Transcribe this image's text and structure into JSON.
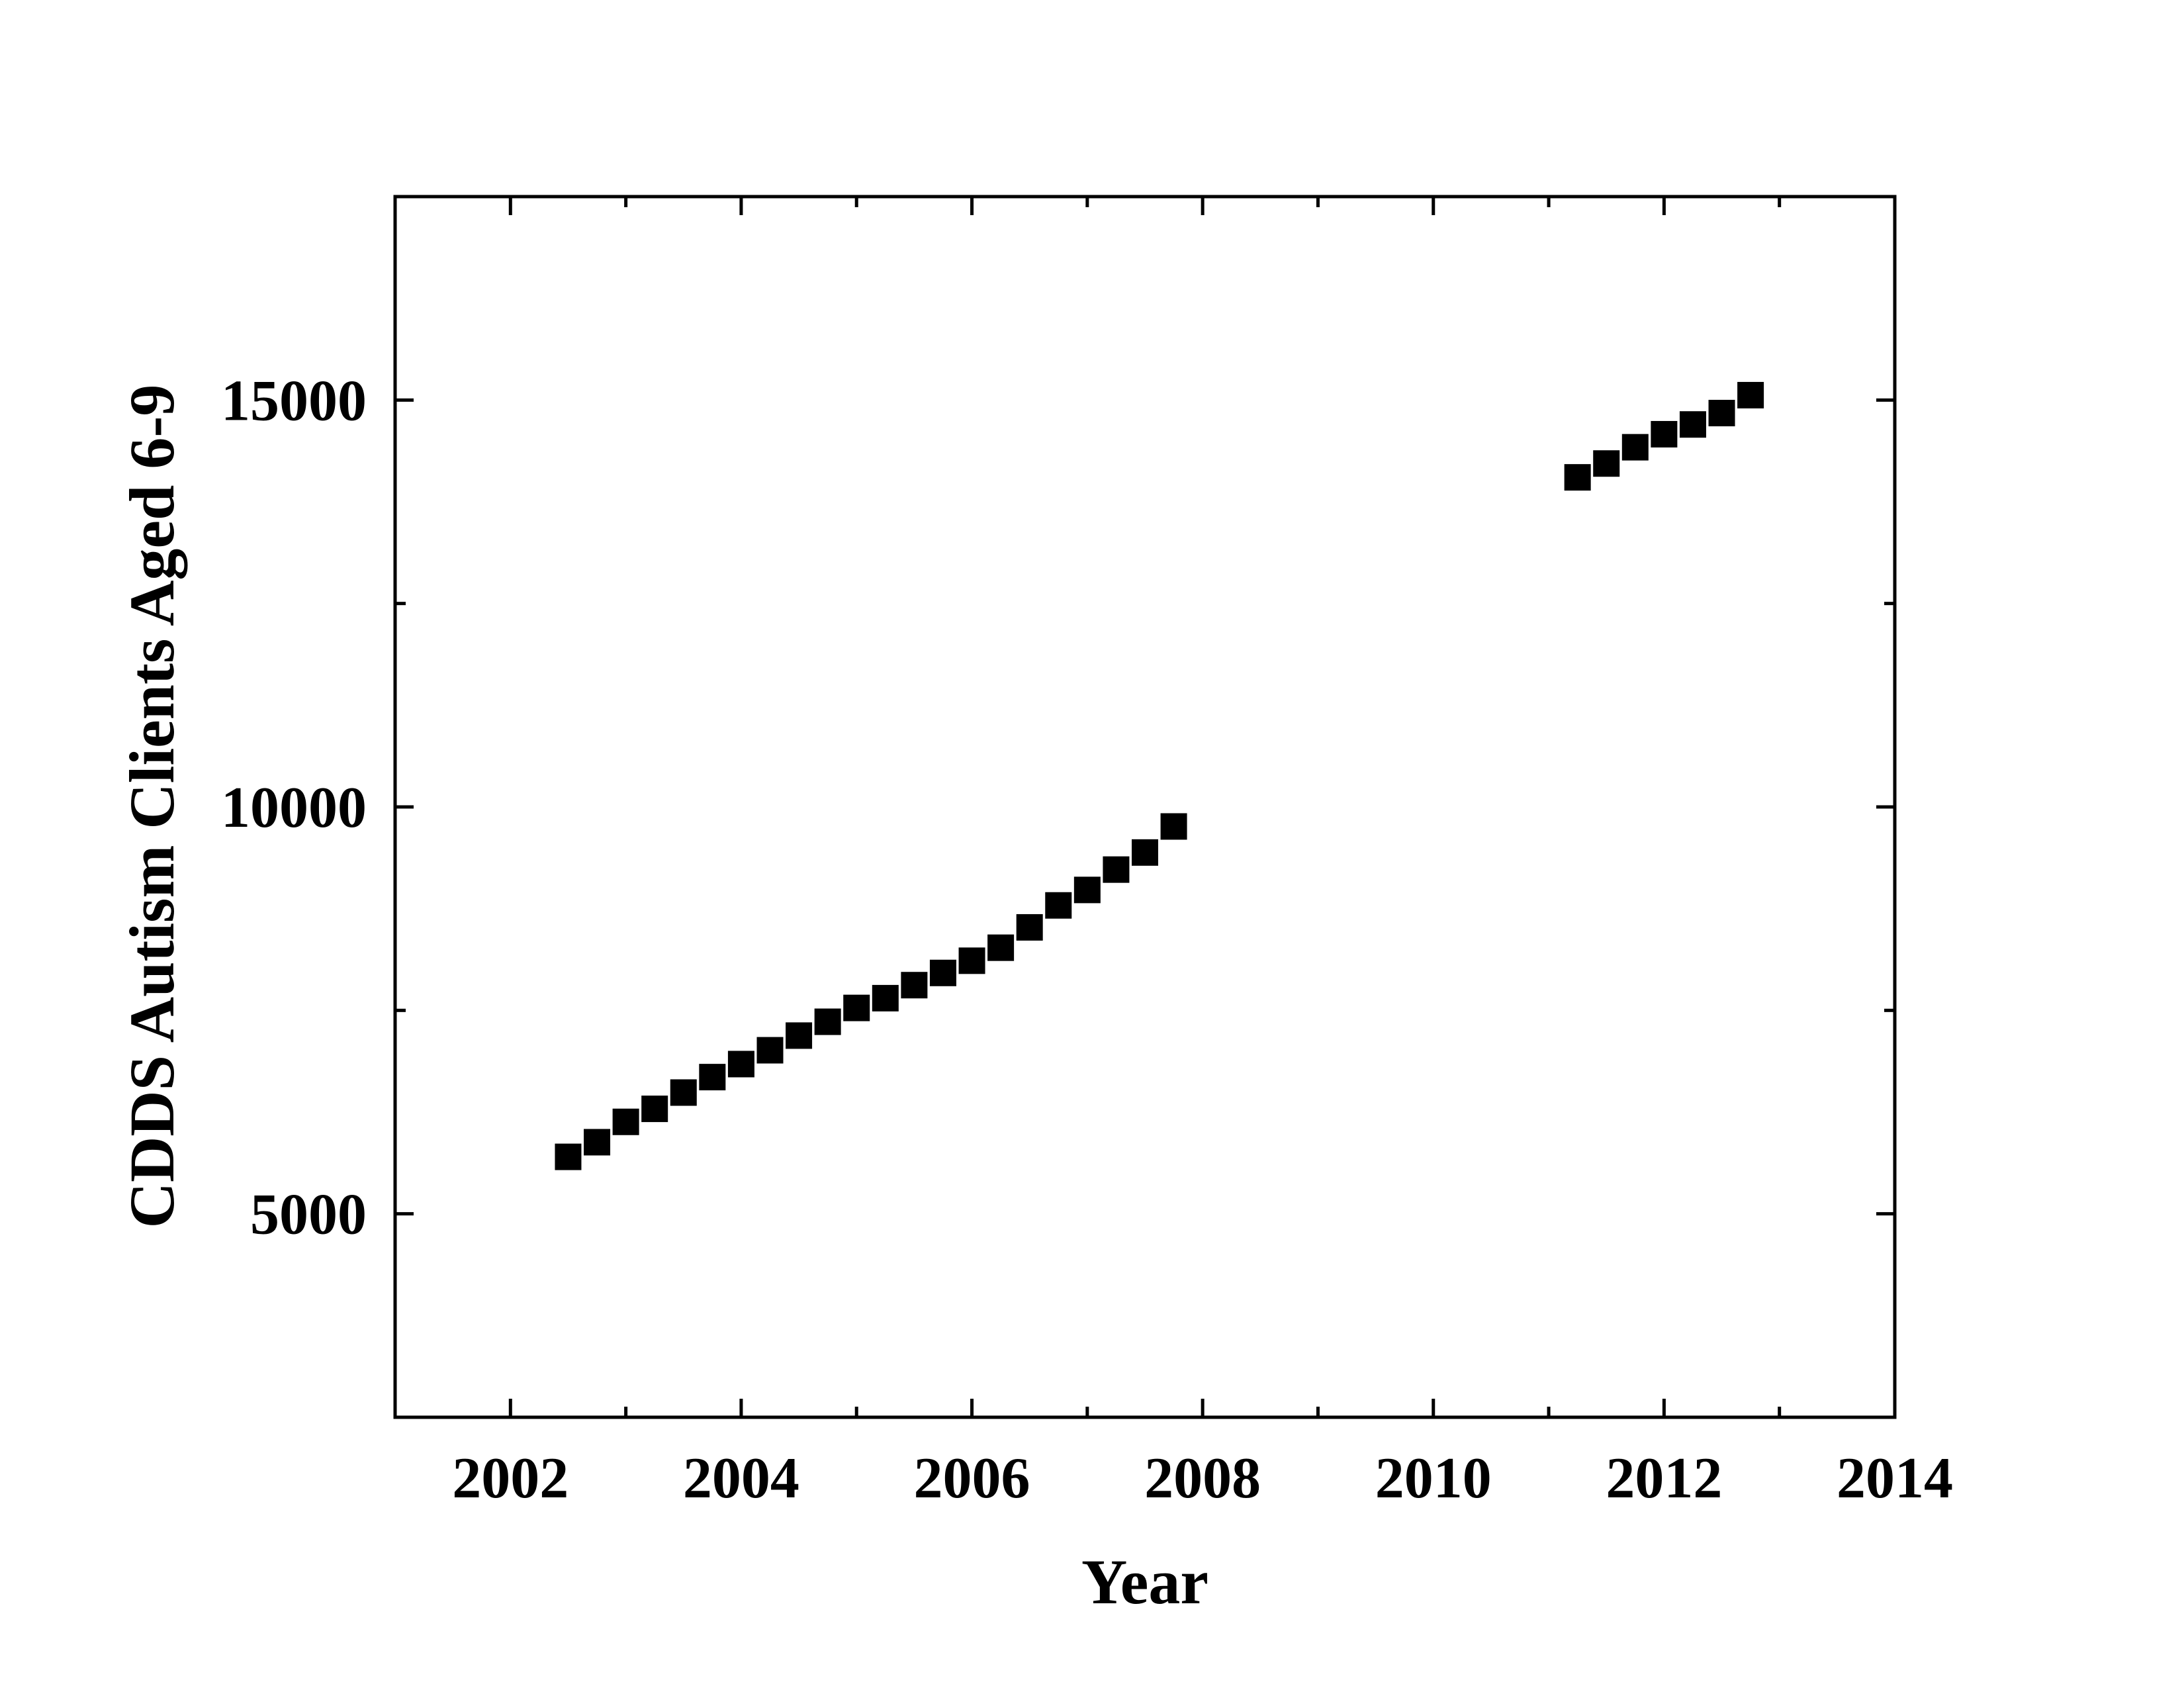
{
  "chart_data": {
    "type": "scatter",
    "xlabel": "Year",
    "ylabel": "CDDS Autism Clients Aged 6-9",
    "xlim": [
      2001,
      2014
    ],
    "ylim": [
      2500,
      17500
    ],
    "x_ticks": [
      2002,
      2004,
      2006,
      2008,
      2010,
      2012,
      2014
    ],
    "x_minor_ticks": [
      2003,
      2005,
      2007,
      2009,
      2011,
      2013
    ],
    "y_ticks": [
      5000,
      10000,
      15000
    ],
    "y_minor_ticks": [
      7500,
      12500
    ],
    "grid": false,
    "legend": "none",
    "marker": "square",
    "colors": {
      "marker": "#000000",
      "axis": "#000000",
      "background": "#ffffff"
    },
    "series": [
      {
        "x": [
          2002.5,
          2002.75,
          2003.0,
          2003.25,
          2003.5,
          2003.75,
          2004.0,
          2004.25,
          2004.5,
          2004.75,
          2005.0,
          2005.25,
          2005.5,
          2005.75,
          2006.0,
          2006.25,
          2006.5,
          2006.75,
          2007.0,
          2007.25,
          2007.5,
          2007.75,
          2011.25,
          2011.5,
          2011.75,
          2012.0,
          2012.25,
          2012.5,
          2012.75
        ],
        "y": [
          5700,
          5880,
          6130,
          6290,
          6490,
          6680,
          6840,
          7010,
          7190,
          7360,
          7530,
          7650,
          7810,
          7960,
          8110,
          8270,
          8520,
          8790,
          8980,
          9230,
          9440,
          9760,
          14050,
          14220,
          14420,
          14580,
          14700,
          14840,
          15060
        ]
      }
    ]
  }
}
